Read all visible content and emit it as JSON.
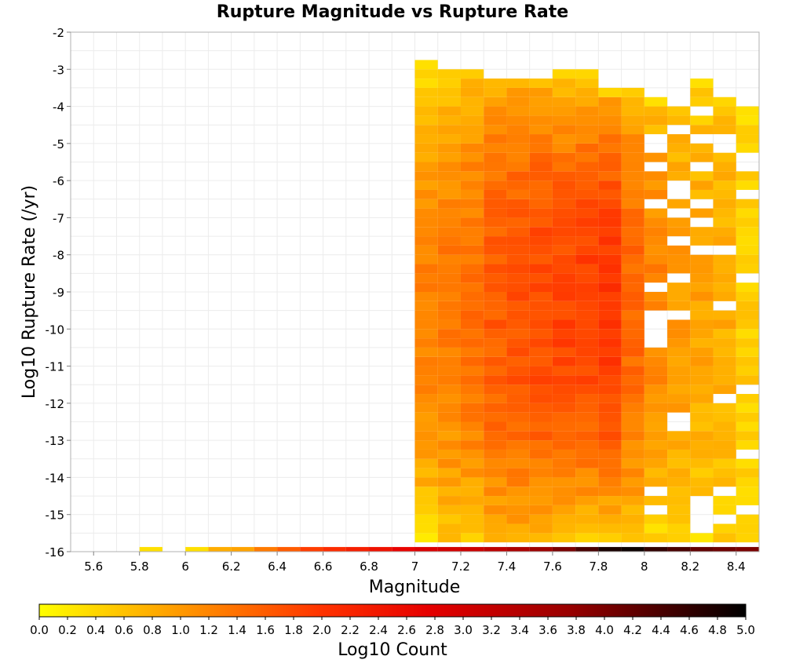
{
  "chart_data": {
    "type": "heatmap",
    "title": "Rupture Magnitude vs Rupture Rate",
    "xlabel": "Magnitude",
    "ylabel": "Log10 Rupture Rate (/yr)",
    "colorbar_label": "Log10 Count",
    "xlim": [
      5.5,
      8.5
    ],
    "ylim": [
      -16,
      -2
    ],
    "x_ticks": [
      "5.6",
      "5.8",
      "6",
      "6.2",
      "6.4",
      "6.6",
      "6.8",
      "7",
      "7.2",
      "7.4",
      "7.6",
      "7.8",
      "8",
      "8.2",
      "8.4"
    ],
    "y_ticks": [
      "-2",
      "-3",
      "-4",
      "-5",
      "-6",
      "-7",
      "-8",
      "-9",
      "-10",
      "-11",
      "-12",
      "-13",
      "-14",
      "-15",
      "-16"
    ],
    "colorbar_ticks": [
      "0.0",
      "0.2",
      "0.4",
      "0.6",
      "0.8",
      "1.0",
      "1.2",
      "1.4",
      "1.6",
      "1.8",
      "2.0",
      "2.2",
      "2.4",
      "2.6",
      "2.8",
      "3.0",
      "3.2",
      "3.4",
      "3.6",
      "3.8",
      "4.0",
      "4.2",
      "4.4",
      "4.6",
      "4.8",
      "5.0"
    ],
    "color_range": [
      0,
      5
    ],
    "colormap": [
      "#ffff00",
      "#ff9900",
      "#ff3300",
      "#e60000",
      "#990000",
      "#000000"
    ],
    "grid": true,
    "x_bin_width": 0.1,
    "y_bin_height": 0.25,
    "bottom_row": {
      "y": -16,
      "x": [
        5.85,
        6.05,
        6.15,
        6.25,
        6.35,
        6.45,
        6.55,
        6.65,
        6.75,
        6.85,
        6.95,
        7.05,
        7.15,
        7.25,
        7.35,
        7.45,
        7.55,
        7.65,
        7.75,
        7.85,
        7.95,
        8.05,
        8.15,
        8.25,
        8.35,
        8.45
      ],
      "values": [
        0.3,
        0.3,
        0.8,
        0.9,
        1.3,
        1.6,
        1.9,
        2.1,
        2.3,
        2.5,
        2.7,
        2.9,
        3.0,
        3.1,
        3.3,
        3.5,
        3.7,
        4.0,
        4.4,
        4.8,
        4.9,
        4.6,
        4.4,
        4.2,
        4.1,
        4.0
      ]
    },
    "columns": [
      {
        "x": 7.05,
        "y_range": [
          -15.75,
          -3.0
        ],
        "peak_value": 1.2,
        "top_value": 0.3
      },
      {
        "x": 7.15,
        "y_range": [
          -15.75,
          -3.25
        ],
        "peak_value": 1.3,
        "top_value": 0.5
      },
      {
        "x": 7.25,
        "y_range": [
          -15.75,
          -3.25
        ],
        "peak_value": 1.4,
        "top_value": 0.5
      },
      {
        "x": 7.35,
        "y_range": [
          -15.75,
          -3.5
        ],
        "peak_value": 1.6,
        "top_value": 0.7
      },
      {
        "x": 7.45,
        "y_range": [
          -15.75,
          -3.5
        ],
        "peak_value": 1.7,
        "top_value": 0.7
      },
      {
        "x": 7.55,
        "y_range": [
          -15.75,
          -3.5
        ],
        "peak_value": 1.8,
        "top_value": 0.6
      },
      {
        "x": 7.65,
        "y_range": [
          -15.75,
          -3.25
        ],
        "peak_value": 1.85,
        "top_value": 0.4
      },
      {
        "x": 7.75,
        "y_range": [
          -15.75,
          -3.25
        ],
        "peak_value": 1.9,
        "top_value": 0.4
      },
      {
        "x": 7.85,
        "y_range": [
          -15.75,
          -3.75
        ],
        "peak_value": 2.0,
        "top_value": 0.4
      },
      {
        "x": 7.95,
        "y_range": [
          -15.75,
          -3.75
        ],
        "peak_value": 1.5,
        "top_value": 0.5
      },
      {
        "x": 8.05,
        "y_range": [
          -15.75,
          -4.0
        ],
        "peak_value": 1.2,
        "top_value": 0.3
      },
      {
        "x": 8.15,
        "y_range": [
          -15.75,
          -4.0
        ],
        "peak_value": 1.0,
        "top_value": 0.3
      },
      {
        "x": 8.25,
        "y_range": [
          -15.75,
          -3.5
        ],
        "peak_value": 0.9,
        "top_value": 0.3
      },
      {
        "x": 8.35,
        "y_range": [
          -15.75,
          -4.0
        ],
        "peak_value": 0.8,
        "top_value": 0.4
      },
      {
        "x": 8.45,
        "y_range": [
          -15.75,
          -4.25
        ],
        "peak_value": 0.5,
        "top_value": 0.3
      }
    ]
  }
}
